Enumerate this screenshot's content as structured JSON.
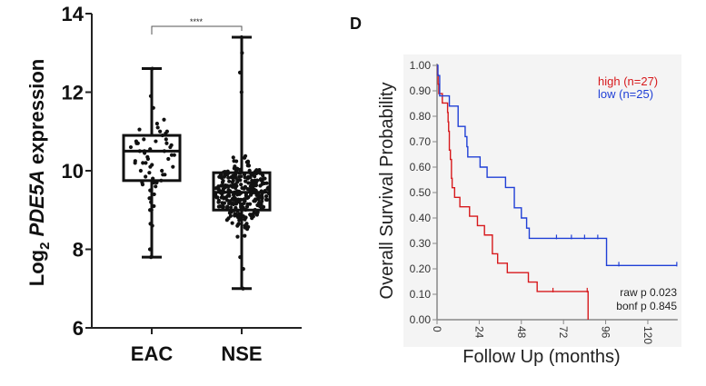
{
  "chart_data": [
    {
      "type": "box",
      "ylabel_prefix": "Log",
      "ylabel_sub": "2",
      "ylabel_gene": "PDE5A",
      "ylabel_suffix": "expression",
      "ylim": [
        6,
        14
      ],
      "yticks": [
        "6",
        "8",
        "10",
        "12",
        "14"
      ],
      "categories": [
        "EAC",
        "NSE"
      ],
      "significance": "****",
      "grid": false,
      "series": [
        {
          "name": "EAC",
          "min": 7.8,
          "q1": 9.75,
          "median": 10.5,
          "q3": 10.9,
          "max": 12.6,
          "points": [
            12.6,
            11.9,
            11.6,
            11.3,
            11.2,
            11.1,
            11.05,
            11.0,
            11.0,
            10.95,
            10.9,
            10.8,
            10.8,
            10.75,
            10.75,
            10.7,
            10.7,
            10.7,
            10.65,
            10.6,
            10.6,
            10.55,
            10.5,
            10.5,
            10.5,
            10.45,
            10.4,
            10.4,
            10.35,
            10.3,
            10.3,
            10.25,
            10.2,
            10.2,
            10.2,
            10.15,
            10.1,
            10.1,
            10.0,
            10.0,
            9.95,
            9.9,
            9.9,
            9.85,
            9.8,
            9.75,
            9.7,
            9.7,
            9.7,
            9.65,
            9.6,
            9.5,
            9.4,
            9.3,
            9.3,
            9.2,
            9.2,
            9.1,
            9.0,
            9.0,
            8.65,
            8.65,
            8.6,
            8.0,
            7.8
          ]
        },
        {
          "name": "NSE",
          "min": 7.0,
          "q1": 9.0,
          "median": 9.45,
          "q3": 9.95,
          "max": 13.4,
          "n": 300
        }
      ]
    },
    {
      "type": "line",
      "panel_label": "D",
      "xlabel": "Follow Up (months)",
      "ylabel": "Overall Survival Probability",
      "xlim": [
        0,
        137
      ],
      "ylim": [
        0,
        1
      ],
      "xticks": [
        "0",
        "24",
        "48",
        "72",
        "96",
        "120"
      ],
      "yticks": [
        "0.00",
        "0.10",
        "0.20",
        "0.30",
        "0.40",
        "0.50",
        "0.60",
        "0.70",
        "0.80",
        "0.90",
        "1.00"
      ],
      "legend_position": "top-right",
      "annotations": [
        "raw p 0.023",
        "bonf p 0.845"
      ],
      "series": [
        {
          "name": "high (n=27)",
          "color": "#d7191c",
          "steps": [
            [
              0,
              1.0
            ],
            [
              0.3,
              0.963
            ],
            [
              0.6,
              0.926
            ],
            [
              1,
              0.889
            ],
            [
              3,
              0.852
            ],
            [
              6,
              0.815
            ],
            [
              6.3,
              0.778
            ],
            [
              6.6,
              0.741
            ],
            [
              7,
              0.667
            ],
            [
              7.6,
              0.63
            ],
            [
              8.2,
              0.556
            ],
            [
              8.6,
              0.519
            ],
            [
              10,
              0.481
            ],
            [
              13,
              0.444
            ],
            [
              18.5,
              0.407
            ],
            [
              23,
              0.37
            ],
            [
              27,
              0.333
            ],
            [
              31.5,
              0.259
            ],
            [
              34.5,
              0.222
            ],
            [
              40,
              0.185
            ],
            [
              52,
              0.148
            ],
            [
              57,
              0.111
            ],
            [
              86,
              0.0
            ]
          ],
          "censored": [
            66,
            85.5
          ]
        },
        {
          "name": "low (n=25)",
          "color": "#1f3fd6",
          "steps": [
            [
              0,
              1.0
            ],
            [
              0.5,
              0.96
            ],
            [
              1.5,
              0.88
            ],
            [
              7,
              0.84
            ],
            [
              12,
              0.76
            ],
            [
              16,
              0.72
            ],
            [
              17,
              0.68
            ],
            [
              17.5,
              0.64
            ],
            [
              24.5,
              0.6
            ],
            [
              28.5,
              0.56
            ],
            [
              39,
              0.52
            ],
            [
              44,
              0.44
            ],
            [
              48,
              0.4
            ],
            [
              51,
              0.36
            ],
            [
              52.5,
              0.32
            ],
            [
              96.5,
              0.213
            ]
          ],
          "censored": [
            68,
            76.5,
            84,
            91.5,
            103.5,
            136.5
          ],
          "end": 136.5
        }
      ]
    }
  ]
}
